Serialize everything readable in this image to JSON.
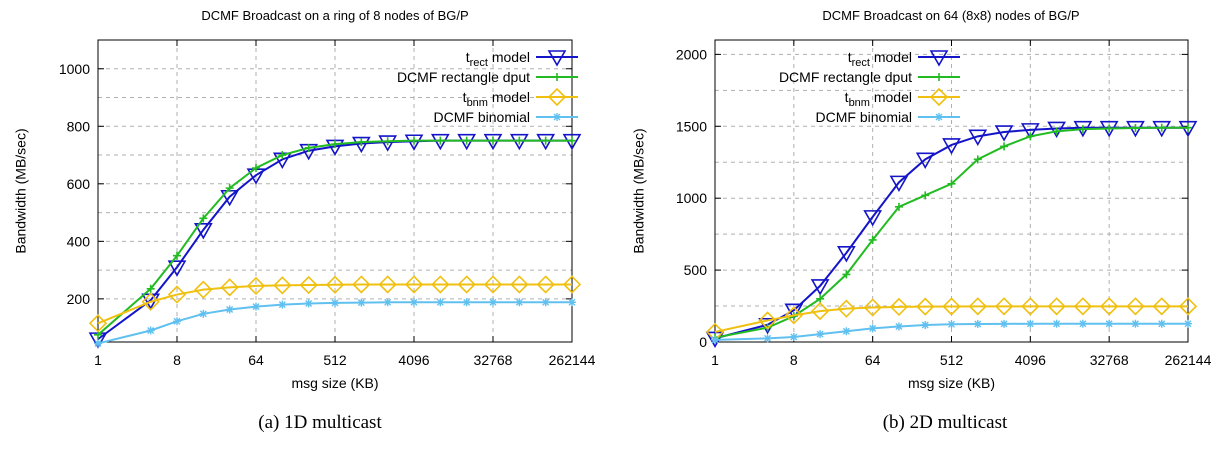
{
  "chart_data": [
    {
      "type": "line",
      "title": "DCMF Broadcast on a ring of 8 nodes of BG/P",
      "xlabel": "msg size (KB)",
      "ylabel": "Bandwidth (MB/sec)",
      "x_scale": "log2",
      "xlim": [
        1,
        262144
      ],
      "ylim": [
        50,
        1100
      ],
      "xticks": [
        "1",
        "8",
        "64",
        "512",
        "4096",
        "32768",
        "262144"
      ],
      "yticks": [
        200,
        400,
        600,
        800,
        1000
      ],
      "grid": true,
      "legend_position": "top-right",
      "caption": "(a)  1D multicast",
      "x": [
        1,
        4,
        8,
        16,
        32,
        64,
        128,
        256,
        512,
        1024,
        2048,
        4096,
        8192,
        16384,
        32768,
        65536,
        131072,
        262144
      ],
      "series": [
        {
          "name": "t",
          "name_sub": "rect",
          "name_suffix": " model",
          "color": "#1414c8",
          "marker": "triangle-down",
          "values": [
            60,
            195,
            310,
            440,
            555,
            630,
            685,
            715,
            730,
            740,
            745,
            748,
            750,
            750,
            750,
            750,
            750,
            750
          ]
        },
        {
          "name": "DCMF rectangle dput",
          "color": "#22bb22",
          "marker": "plus",
          "values": [
            75,
            235,
            350,
            480,
            585,
            655,
            700,
            725,
            738,
            745,
            748,
            750,
            750,
            750,
            750,
            750,
            750,
            750
          ]
        },
        {
          "name": "t",
          "name_sub": "bnm",
          "name_suffix": " model",
          "color": "#f0c010",
          "marker": "diamond",
          "values": [
            115,
            190,
            215,
            232,
            240,
            245,
            247,
            248,
            249,
            250,
            250,
            250,
            250,
            250,
            250,
            250,
            250,
            250
          ]
        },
        {
          "name": "DCMF binomial",
          "color": "#60c0f0",
          "marker": "asterisk",
          "values": [
            45,
            90,
            122,
            148,
            163,
            173,
            180,
            184,
            186,
            187,
            188,
            188,
            188,
            188,
            188,
            188,
            188,
            188
          ]
        }
      ]
    },
    {
      "type": "line",
      "title": "DCMF Broadcast on 64 (8x8) nodes of BG/P",
      "xlabel": "msg size (KB)",
      "ylabel": "Bandwidth (MB/sec)",
      "x_scale": "log2",
      "xlim": [
        1,
        262144
      ],
      "ylim": [
        0,
        2100
      ],
      "xticks": [
        "1",
        "8",
        "64",
        "512",
        "4096",
        "32768",
        "262144"
      ],
      "yticks": [
        0,
        500,
        1000,
        1500,
        2000
      ],
      "grid": true,
      "legend_position": "top-right",
      "caption": "(b)  2D multicast",
      "x": [
        1,
        4,
        8,
        16,
        32,
        64,
        128,
        256,
        512,
        1024,
        2048,
        4096,
        8192,
        16384,
        32768,
        65536,
        131072,
        262144
      ],
      "series": [
        {
          "name": "t",
          "name_sub": "rect",
          "name_suffix": " model",
          "color": "#1414c8",
          "marker": "triangle-down",
          "values": [
            25,
            120,
            220,
            390,
            620,
            870,
            1110,
            1270,
            1370,
            1430,
            1460,
            1475,
            1485,
            1490,
            1490,
            1490,
            1490,
            1490
          ]
        },
        {
          "name": "DCMF rectangle dput",
          "color": "#22bb22",
          "marker": "plus",
          "values": [
            30,
            100,
            180,
            300,
            470,
            710,
            940,
            1020,
            1100,
            1270,
            1360,
            1430,
            1465,
            1480,
            1485,
            1488,
            1490,
            1490
          ]
        },
        {
          "name": "t",
          "name_sub": "bnm",
          "name_suffix": " model",
          "color": "#f0c010",
          "marker": "diamond",
          "values": [
            70,
            150,
            185,
            215,
            232,
            240,
            244,
            246,
            247,
            248,
            248,
            248,
            248,
            248,
            248,
            248,
            248,
            248
          ]
        },
        {
          "name": "DCMF binomial",
          "color": "#60c0f0",
          "marker": "asterisk",
          "values": [
            15,
            25,
            35,
            55,
            75,
            95,
            108,
            118,
            123,
            125,
            126,
            127,
            127,
            127,
            127,
            127,
            127,
            127
          ]
        }
      ]
    }
  ]
}
